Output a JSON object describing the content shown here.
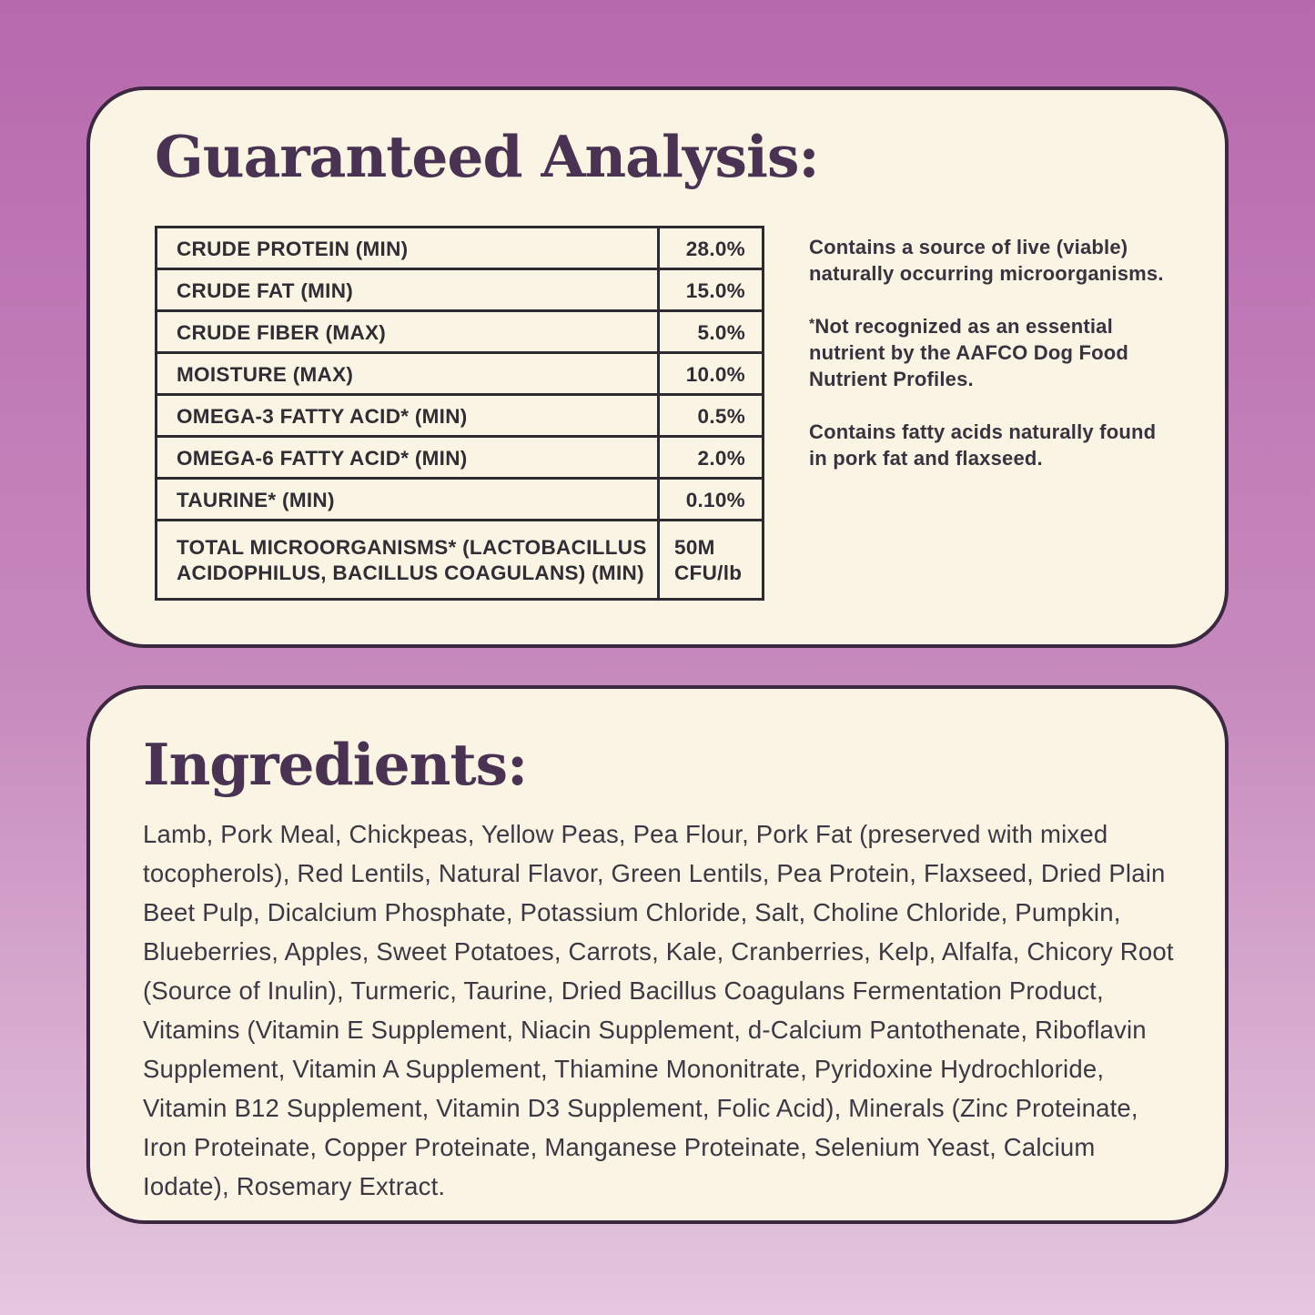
{
  "colors": {
    "background_top": "#b769ae",
    "background_mid": "#c78abd",
    "background_bottom": "#e4c7df",
    "card_background": "#faf4e4",
    "card_border": "#3c2840",
    "heading": "#493252",
    "table_border": "#2d2a31",
    "table_text": "#302d35",
    "note_text": "#393340",
    "body_text": "#3e3744"
  },
  "analysis": {
    "title": "Guaranteed Analysis:",
    "table": {
      "rows": [
        {
          "label": "CRUDE PROTEIN (MIN)",
          "value": "28.0%"
        },
        {
          "label": "CRUDE FAT (MIN)",
          "value": "15.0%"
        },
        {
          "label": "CRUDE FIBER (MAX)",
          "value": "5.0%"
        },
        {
          "label": "MOISTURE (MAX)",
          "value": "10.0%"
        },
        {
          "label": "OMEGA-3 FATTY ACID* (MIN)",
          "value": "0.5%"
        },
        {
          "label": "OMEGA-6 FATTY ACID* (MIN)",
          "value": "2.0%"
        },
        {
          "label": "TAURINE* (MIN)",
          "value": "0.10%"
        },
        {
          "label": "TOTAL MICROORGANISMS* (LACTOBACILLUS ACIDOPHILUS, BACILLUS COAGULANS) (MIN)",
          "value": "50M CFU/lb"
        }
      ]
    },
    "notes": {
      "note1": "Contains a source of live (viable) naturally occurring microorganisms.",
      "note2_asterisk": "*",
      "note2": "Not recognized as an essential nutrient by the AAFCO Dog Food Nutrient Profiles.",
      "note3": "Contains fatty acids naturally found in pork fat and flaxseed."
    }
  },
  "ingredients": {
    "title": "Ingredients:",
    "text": "Lamb, Pork Meal, Chickpeas, Yellow Peas, Pea Flour, Pork Fat (preserved with mixed tocopherols), Red Lentils, Natural Flavor, Green Lentils, Pea Protein, Flaxseed, Dried Plain Beet Pulp, Dicalcium Phosphate, Potassium Chloride, Salt, Choline Chloride, Pumpkin, Blueberries, Apples, Sweet Potatoes, Carrots, Kale, Cranberries, Kelp, Alfalfa, Chicory Root (Source of Inulin), Turmeric, Taurine, Dried Bacillus Coagulans Fermentation Product, Vitamins (Vitamin E Supplement, Niacin Supplement, d-Calcium Pantothenate, Riboflavin Supplement, Vitamin A Supplement, Thiamine Mononitrate, Pyridoxine Hydrochloride, Vitamin B12 Supplement, Vitamin D3 Supplement, Folic Acid), Minerals (Zinc Proteinate, Iron Proteinate, Copper Proteinate, Manganese Proteinate, Selenium Yeast, Calcium Iodate), Rosemary Extract."
  }
}
